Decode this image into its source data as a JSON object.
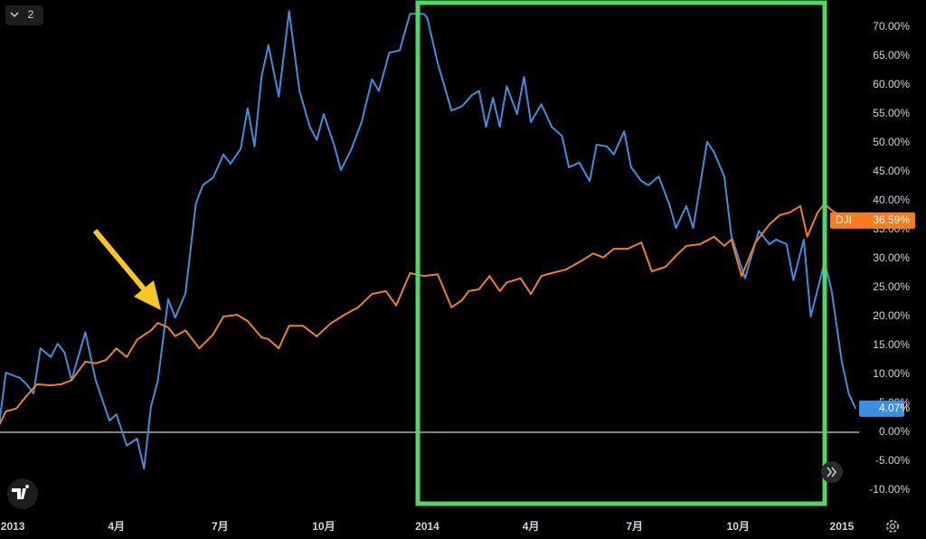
{
  "toolbar": {
    "count": "2"
  },
  "chart_data": {
    "type": "line",
    "xlim": [
      -0.37,
      24.5
    ],
    "xticks": [
      {
        "value": 0,
        "label": "2013"
      },
      {
        "value": 3,
        "label": "4月"
      },
      {
        "value": 6,
        "label": "7月"
      },
      {
        "value": 9,
        "label": "10月"
      },
      {
        "value": 12,
        "label": "2014"
      },
      {
        "value": 15,
        "label": "4月"
      },
      {
        "value": 18,
        "label": "7月"
      },
      {
        "value": 21,
        "label": "10月"
      },
      {
        "value": 24,
        "label": "2015"
      }
    ],
    "ylim": [
      -13.6,
      74.7
    ],
    "yticks": [
      {
        "value": -10,
        "label": "-10.00%"
      },
      {
        "value": -5,
        "label": "-5.00%"
      },
      {
        "value": 0,
        "label": "0.00%"
      },
      {
        "value": 5,
        "label": "5.00%"
      },
      {
        "value": 10,
        "label": "10.00%"
      },
      {
        "value": 15,
        "label": "15.00%"
      },
      {
        "value": 20,
        "label": "20.00%"
      },
      {
        "value": 25,
        "label": "25.00%"
      },
      {
        "value": 30,
        "label": "30.00%"
      },
      {
        "value": 35,
        "label": "35.00%"
      },
      {
        "value": 40,
        "label": "40.00%"
      },
      {
        "value": 45,
        "label": "45.00%"
      },
      {
        "value": 50,
        "label": "50.00%"
      },
      {
        "value": 55,
        "label": "55.00%"
      },
      {
        "value": 60,
        "label": "60.00%"
      },
      {
        "value": 65,
        "label": "65.00%"
      },
      {
        "value": 70,
        "label": "70.00%"
      }
    ],
    "baseline": 0,
    "series": [
      {
        "color": "#3d8ee0",
        "last_label": "4.07%",
        "x": [
          -0.4,
          -0.2,
          0.2,
          0.4,
          0.6,
          0.8,
          1.1,
          1.3,
          1.5,
          1.7,
          2.1,
          2.4,
          2.8,
          3.0,
          3.3,
          3.6,
          3.8,
          4.0,
          4.2,
          4.5,
          4.7,
          5.0,
          5.3,
          5.5,
          5.8,
          6.1,
          6.3,
          6.6,
          6.8,
          7.0,
          7.2,
          7.4,
          7.7,
          8.0,
          8.3,
          8.6,
          8.8,
          9.0,
          9.3,
          9.5,
          9.8,
          10.1,
          10.4,
          10.6,
          10.9,
          11.2,
          11.5,
          11.9,
          12.0,
          12.3,
          12.7,
          13.0,
          13.3,
          13.5,
          13.7,
          13.9,
          14.1,
          14.3,
          14.6,
          14.8,
          15.0,
          15.3,
          15.6,
          15.9,
          16.1,
          16.4,
          16.7,
          16.9,
          17.2,
          17.4,
          17.7,
          17.9,
          18.2,
          18.4,
          18.7,
          19.0,
          19.2,
          19.5,
          19.7,
          20.1,
          20.3,
          20.6,
          20.8,
          21.2,
          21.6,
          21.9,
          22.1,
          22.4,
          22.6,
          22.9,
          23.1,
          23.3,
          23.5,
          23.7,
          24.0,
          24.2,
          24.4
        ],
        "values": [
          1.2,
          10.3,
          9.4,
          8.3,
          6.7,
          14.5,
          13,
          15.3,
          13.8,
          9,
          17.3,
          9,
          2,
          3.1,
          -2.3,
          -1.1,
          -6.3,
          4.4,
          9,
          23,
          19.8,
          24,
          39.5,
          42.7,
          44,
          48,
          46.4,
          49,
          56,
          49.4,
          61.4,
          66.9,
          58,
          72.8,
          59,
          52.8,
          50.5,
          55,
          49.7,
          45.3,
          48.9,
          53.6,
          61,
          59,
          65.6,
          66,
          72.3,
          72.3,
          71.6,
          63.8,
          55.6,
          56.3,
          58.3,
          59,
          52.8,
          57.8,
          52.8,
          59.8,
          55,
          61.4,
          53.6,
          56.7,
          52.8,
          51.2,
          45.8,
          46.6,
          43.4,
          49.7,
          49.4,
          48,
          52,
          45.8,
          43.4,
          42.7,
          44.2,
          39.5,
          35.3,
          39.1,
          35.3,
          50.2,
          48.4,
          44.2,
          34,
          26.6,
          34.8,
          32.5,
          33.3,
          32.5,
          26.3,
          33.3,
          20,
          24.7,
          29.4,
          24.7,
          12.2,
          6.7,
          4.07
        ]
      },
      {
        "name": "DJI",
        "color": "#f57c1f",
        "last_label": "36.59%",
        "x": [
          -0.4,
          -0.2,
          0.1,
          0.4,
          0.7,
          1.1,
          1.4,
          1.7,
          2.1,
          2.4,
          2.7,
          3.0,
          3.3,
          3.6,
          4.0,
          4.2,
          4.5,
          4.7,
          5.0,
          5.4,
          5.8,
          6.1,
          6.5,
          6.8,
          7.2,
          7.4,
          7.7,
          8.0,
          8.4,
          8.8,
          9.2,
          9.6,
          10.0,
          10.4,
          10.8,
          11.1,
          11.5,
          11.9,
          12.3,
          12.7,
          13.0,
          13.2,
          13.5,
          13.8,
          14.1,
          14.3,
          14.7,
          15.0,
          15.3,
          15.6,
          16.0,
          16.4,
          16.8,
          17.1,
          17.4,
          17.8,
          18.2,
          18.5,
          18.9,
          19.2,
          19.5,
          19.9,
          20.3,
          20.6,
          20.8,
          21.1,
          21.5,
          21.9,
          22.2,
          22.5,
          22.8,
          23.0,
          23.3,
          23.5,
          23.7,
          24.0,
          24.4
        ],
        "values": [
          1.2,
          3.6,
          4.1,
          6.3,
          8.3,
          8.1,
          8.3,
          9,
          12.2,
          11.9,
          12.5,
          14.5,
          13,
          16,
          17.6,
          18.9,
          18.1,
          16.6,
          17.6,
          14.5,
          16.9,
          20,
          20.3,
          19.2,
          16.4,
          16.1,
          14.5,
          18.4,
          18.4,
          16.6,
          18.8,
          20.3,
          21.6,
          23.9,
          24.4,
          21.9,
          27.5,
          27,
          27.3,
          21.6,
          22.8,
          24.4,
          24.7,
          27,
          24.4,
          25.9,
          26.6,
          23.9,
          27,
          27.5,
          28.1,
          29.4,
          30.9,
          30.2,
          31.7,
          31.7,
          32.8,
          27.8,
          28.6,
          30.5,
          32.2,
          32.5,
          33.8,
          32.2,
          33.3,
          27,
          32.8,
          35.9,
          37.5,
          38,
          39.1,
          33.8,
          38,
          39.5,
          38.4,
          37.2,
          36.59
        ]
      }
    ]
  }
}
